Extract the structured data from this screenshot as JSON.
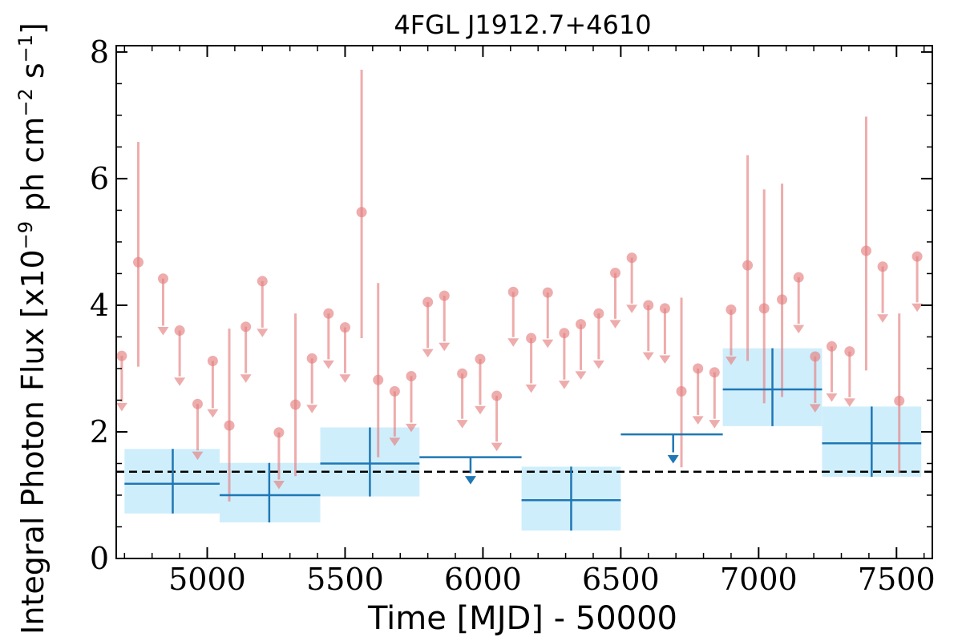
{
  "chart_data": {
    "type": "scatter",
    "title": "4FGL J1912.7+4610",
    "xlabel": "Time [MJD] - 50000",
    "ylabel": "Integral Photon Flux [x10^-9 ph cm^-2 s^-1]",
    "ylabel_parts": {
      "a": "Integral Photon Flux [x10",
      "exp1": "−9",
      "b": " ph cm",
      "exp2": "−2",
      "c": " s",
      "exp3": "−1",
      "d": "]"
    },
    "xlim": [
      4670,
      7630
    ],
    "ylim": [
      0,
      8.1
    ],
    "x_ticks": [
      "5000",
      "5500",
      "6000",
      "6500",
      "7000",
      "7500"
    ],
    "y_ticks": [
      "0",
      "2",
      "4",
      "6",
      "8"
    ],
    "x_tick_values": [
      5000,
      5500,
      6000,
      6500,
      7000,
      7500
    ],
    "y_tick_values": [
      0,
      2,
      4,
      6,
      8
    ],
    "x_minor_step": 100,
    "y_minor_step": 0.5,
    "mean_flux": 1.37,
    "colors": {
      "short_bin": "#e57f7f",
      "long_bin": "#1f77b4",
      "long_bin_fill": "#cfeefc",
      "mean_line": "#000000"
    },
    "short_bins": [
      {
        "x": 4690,
        "y": 3.2,
        "ul": true,
        "ylow": 2.35
      },
      {
        "x": 4750,
        "y": 4.68,
        "ul": false,
        "ylow": 3.03,
        "yhigh": 6.58
      },
      {
        "x": 4840,
        "y": 4.42,
        "ul": true,
        "ylow": 3.55
      },
      {
        "x": 4900,
        "y": 3.6,
        "ul": true,
        "ylow": 2.75
      },
      {
        "x": 4965,
        "y": 2.44,
        "ul": true,
        "ylow": 1.58
      },
      {
        "x": 5020,
        "y": 3.12,
        "ul": true,
        "ylow": 2.25
      },
      {
        "x": 5080,
        "y": 2.1,
        "ul": false,
        "ylow": 0.9,
        "yhigh": 3.63
      },
      {
        "x": 5140,
        "y": 3.66,
        "ul": true,
        "ylow": 2.8
      },
      {
        "x": 5200,
        "y": 4.38,
        "ul": true,
        "ylow": 3.52
      },
      {
        "x": 5260,
        "y": 1.99,
        "ul": true,
        "ylow": 1.12
      },
      {
        "x": 5320,
        "y": 2.43,
        "ul": false,
        "ylow": 1.3,
        "yhigh": 3.87
      },
      {
        "x": 5380,
        "y": 3.16,
        "ul": true,
        "ylow": 2.32
      },
      {
        "x": 5440,
        "y": 3.87,
        "ul": true,
        "ylow": 3.02
      },
      {
        "x": 5500,
        "y": 3.65,
        "ul": true,
        "ylow": 2.8
      },
      {
        "x": 5560,
        "y": 5.47,
        "ul": false,
        "ylow": 3.48,
        "yhigh": 7.72
      },
      {
        "x": 5620,
        "y": 2.82,
        "ul": false,
        "ylow": 1.6,
        "yhigh": 4.35
      },
      {
        "x": 5680,
        "y": 2.64,
        "ul": true,
        "ylow": 1.8
      },
      {
        "x": 5740,
        "y": 2.88,
        "ul": true,
        "ylow": 2.02
      },
      {
        "x": 5800,
        "y": 4.05,
        "ul": true,
        "ylow": 3.2
      },
      {
        "x": 5860,
        "y": 4.15,
        "ul": true,
        "ylow": 3.3
      },
      {
        "x": 5925,
        "y": 2.92,
        "ul": true,
        "ylow": 2.08
      },
      {
        "x": 5990,
        "y": 3.15,
        "ul": true,
        "ylow": 2.3
      },
      {
        "x": 6050,
        "y": 2.57,
        "ul": true,
        "ylow": 1.72
      },
      {
        "x": 6110,
        "y": 4.21,
        "ul": true,
        "ylow": 3.37
      },
      {
        "x": 6175,
        "y": 3.48,
        "ul": true,
        "ylow": 2.64
      },
      {
        "x": 6235,
        "y": 4.2,
        "ul": true,
        "ylow": 3.35
      },
      {
        "x": 6295,
        "y": 3.56,
        "ul": true,
        "ylow": 2.7
      },
      {
        "x": 6355,
        "y": 3.7,
        "ul": true,
        "ylow": 2.85
      },
      {
        "x": 6420,
        "y": 3.87,
        "ul": true,
        "ylow": 3.02
      },
      {
        "x": 6480,
        "y": 4.51,
        "ul": true,
        "ylow": 3.66
      },
      {
        "x": 6540,
        "y": 4.75,
        "ul": true,
        "ylow": 3.9
      },
      {
        "x": 6600,
        "y": 4.0,
        "ul": true,
        "ylow": 3.15
      },
      {
        "x": 6660,
        "y": 3.95,
        "ul": true,
        "ylow": 3.1
      },
      {
        "x": 6720,
        "y": 2.64,
        "ul": false,
        "ylow": 1.44,
        "yhigh": 4.12
      },
      {
        "x": 6780,
        "y": 3.0,
        "ul": true,
        "ylow": 2.14
      },
      {
        "x": 6840,
        "y": 2.94,
        "ul": true,
        "ylow": 2.08
      },
      {
        "x": 6900,
        "y": 3.93,
        "ul": true,
        "ylow": 3.08
      },
      {
        "x": 6960,
        "y": 4.63,
        "ul": false,
        "ylow": 3.12,
        "yhigh": 6.37
      },
      {
        "x": 7020,
        "y": 3.95,
        "ul": false,
        "ylow": 2.45,
        "yhigh": 5.83
      },
      {
        "x": 7085,
        "y": 4.09,
        "ul": false,
        "ylow": 2.55,
        "yhigh": 5.92
      },
      {
        "x": 7145,
        "y": 4.44,
        "ul": true,
        "ylow": 3.58
      },
      {
        "x": 7205,
        "y": 3.19,
        "ul": true,
        "ylow": 2.33
      },
      {
        "x": 7265,
        "y": 3.35,
        "ul": true,
        "ylow": 2.5
      },
      {
        "x": 7330,
        "y": 3.27,
        "ul": true,
        "ylow": 2.42
      },
      {
        "x": 7390,
        "y": 4.86,
        "ul": false,
        "ylow": 2.97,
        "yhigh": 6.98
      },
      {
        "x": 7450,
        "y": 4.61,
        "ul": true,
        "ylow": 3.75
      },
      {
        "x": 7510,
        "y": 2.49,
        "ul": false,
        "ylow": 1.35,
        "yhigh": 3.87
      },
      {
        "x": 7575,
        "y": 4.77,
        "ul": true,
        "ylow": 3.92
      }
    ],
    "long_bins": [
      {
        "x0": 4700,
        "x1": 5045,
        "xc": 4875,
        "y": 1.18,
        "ylow": 0.71,
        "yhigh": 1.73,
        "ul": false
      },
      {
        "x0": 5045,
        "x1": 5410,
        "xc": 5225,
        "y": 1.0,
        "ylow": 0.57,
        "yhigh": 1.51,
        "ul": false
      },
      {
        "x0": 5410,
        "x1": 5770,
        "xc": 5590,
        "y": 1.5,
        "ylow": 0.98,
        "yhigh": 2.07,
        "ul": false
      },
      {
        "x0": 5770,
        "x1": 6140,
        "xc": 5955,
        "y": 1.6,
        "ul": true,
        "ylow": 1.22
      },
      {
        "x0": 6140,
        "x1": 6500,
        "xc": 6320,
        "y": 0.92,
        "ylow": 0.44,
        "yhigh": 1.45,
        "ul": false
      },
      {
        "x0": 6500,
        "x1": 6870,
        "xc": 6690,
        "y": 1.96,
        "ul": true,
        "ylow": 1.55
      },
      {
        "x0": 6870,
        "x1": 7230,
        "xc": 7050,
        "y": 2.67,
        "ylow": 2.09,
        "yhigh": 3.32,
        "ul": false
      },
      {
        "x0": 7230,
        "x1": 7590,
        "xc": 7410,
        "y": 1.82,
        "ylow": 1.29,
        "yhigh": 2.4,
        "ul": false
      }
    ]
  }
}
